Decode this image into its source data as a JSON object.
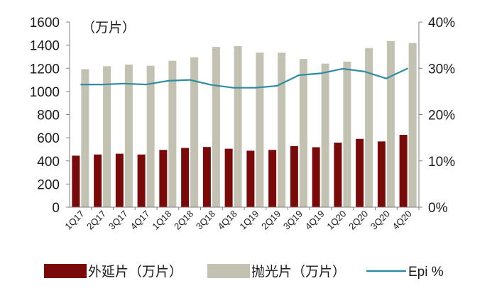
{
  "chart_data": {
    "type": "bar",
    "unit_label": "（万片）",
    "categories": [
      "1Q17",
      "2Q17",
      "3Q17",
      "4Q17",
      "1Q18",
      "2Q18",
      "3Q18",
      "4Q18",
      "1Q19",
      "2Q19",
      "3Q19",
      "4Q19",
      "1Q20",
      "2Q20",
      "3Q20",
      "4Q20"
    ],
    "series": [
      {
        "name": "外延片（万片）",
        "kind": "bar",
        "axis": "left",
        "color": "#7a0a0a",
        "values": [
          445,
          455,
          462,
          455,
          495,
          512,
          520,
          505,
          488,
          495,
          528,
          518,
          558,
          590,
          568,
          625
        ]
      },
      {
        "name": "抛光片（万片）",
        "kind": "bar",
        "axis": "left",
        "color": "#c3c1b1",
        "values": [
          1192,
          1218,
          1232,
          1222,
          1265,
          1295,
          1385,
          1392,
          1335,
          1335,
          1280,
          1240,
          1258,
          1375,
          1435,
          1418
        ]
      },
      {
        "name": "Epi %",
        "kind": "line",
        "axis": "right",
        "color": "#2e8da0",
        "values": [
          26.5,
          26.5,
          26.7,
          26.5,
          27.3,
          27.5,
          26.4,
          25.8,
          25.8,
          26.2,
          28.5,
          28.9,
          29.9,
          29.3,
          27.8,
          30.0
        ]
      }
    ],
    "left_axis": {
      "ylim": [
        0,
        1600
      ],
      "ticks": [
        0,
        200,
        400,
        600,
        800,
        1000,
        1200,
        1400,
        1600
      ]
    },
    "right_axis": {
      "ylim": [
        0,
        40
      ],
      "ticks": [
        "0%",
        "10%",
        "20%",
        "30%",
        "40%"
      ]
    },
    "legend_position": "bottom",
    "grid": false
  }
}
